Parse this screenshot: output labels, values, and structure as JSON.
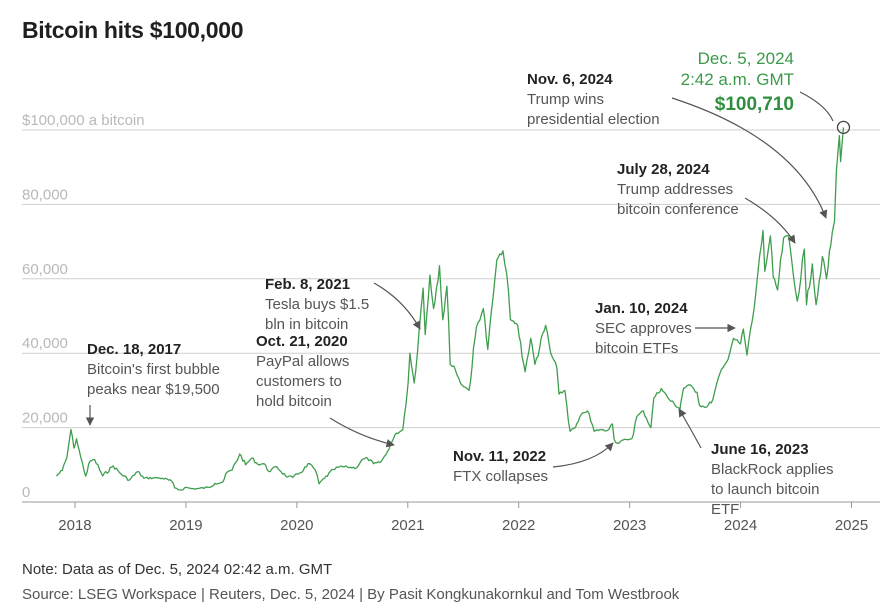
{
  "title": "Bitcoin hits $100,000",
  "note": "Note: Data as of Dec. 5, 2024 02:42 a.m. GMT",
  "source": "Source: LSEG Workspace | Reuters, Dec. 5, 2024 | By Pasit Kongkunakornkul and Tom Westbrook",
  "colors": {
    "line": "#3f9e4e",
    "highlight": "#2f8f3f",
    "grid": "#cfcfcf",
    "arrow": "#555555"
  },
  "chart_data": {
    "type": "line",
    "title": "Bitcoin hits $100,000",
    "xlabel": "",
    "ylabel": "",
    "ylim": [
      0,
      100000
    ],
    "xlim": [
      "2017-09-01",
      "2025-03-01"
    ],
    "grid": "horizontal",
    "y_ticks": [
      {
        "value": 0,
        "label": "0"
      },
      {
        "value": 20000,
        "label": "20,000"
      },
      {
        "value": 40000,
        "label": "40,000"
      },
      {
        "value": 60000,
        "label": "60,000"
      },
      {
        "value": 80000,
        "label": "80,000"
      },
      {
        "value": 100000,
        "label": "$100,000 a bitcoin"
      }
    ],
    "x_ticks": [
      {
        "value": "2018-01-01",
        "label": "2018"
      },
      {
        "value": "2019-01-01",
        "label": "2019"
      },
      {
        "value": "2020-01-01",
        "label": "2020"
      },
      {
        "value": "2021-01-01",
        "label": "2021"
      },
      {
        "value": "2022-01-01",
        "label": "2022"
      },
      {
        "value": "2023-01-01",
        "label": "2023"
      },
      {
        "value": "2024-01-01",
        "label": "2024"
      },
      {
        "value": "2025-01-01",
        "label": "2025"
      }
    ],
    "series": [
      {
        "name": "",
        "points": [
          [
            "2017-11-01",
            7000
          ],
          [
            "2017-11-20",
            8500
          ],
          [
            "2017-12-05",
            12000
          ],
          [
            "2017-12-18",
            19500
          ],
          [
            "2017-12-28",
            14500
          ],
          [
            "2018-01-06",
            17000
          ],
          [
            "2018-01-20",
            12000
          ],
          [
            "2018-02-06",
            7000
          ],
          [
            "2018-02-20",
            11000
          ],
          [
            "2018-03-05",
            11400
          ],
          [
            "2018-04-01",
            7000
          ],
          [
            "2018-05-05",
            9700
          ],
          [
            "2018-06-01",
            7500
          ],
          [
            "2018-06-28",
            5900
          ],
          [
            "2018-07-25",
            8200
          ],
          [
            "2018-08-15",
            6400
          ],
          [
            "2018-09-15",
            6500
          ],
          [
            "2018-10-15",
            6400
          ],
          [
            "2018-11-15",
            5600
          ],
          [
            "2018-11-25",
            3800
          ],
          [
            "2018-12-15",
            3200
          ],
          [
            "2018-12-28",
            3900
          ],
          [
            "2019-01-20",
            3600
          ],
          [
            "2019-02-10",
            3600
          ],
          [
            "2019-03-15",
            3900
          ],
          [
            "2019-04-05",
            5000
          ],
          [
            "2019-05-01",
            5400
          ],
          [
            "2019-05-15",
            8000
          ],
          [
            "2019-06-01",
            8600
          ],
          [
            "2019-06-26",
            12900
          ],
          [
            "2019-07-15",
            10000
          ],
          [
            "2019-08-05",
            11800
          ],
          [
            "2019-08-25",
            10100
          ],
          [
            "2019-09-15",
            10300
          ],
          [
            "2019-09-30",
            8200
          ],
          [
            "2019-10-26",
            9500
          ],
          [
            "2019-11-25",
            7000
          ],
          [
            "2019-12-18",
            6600
          ],
          [
            "2020-01-10",
            7800
          ],
          [
            "2020-02-13",
            10300
          ],
          [
            "2020-03-01",
            8600
          ],
          [
            "2020-03-13",
            4900
          ],
          [
            "2020-04-01",
            6400
          ],
          [
            "2020-04-30",
            8700
          ],
          [
            "2020-05-20",
            9500
          ],
          [
            "2020-06-15",
            9400
          ],
          [
            "2020-07-15",
            9200
          ],
          [
            "2020-08-01",
            11300
          ],
          [
            "2020-08-20",
            11800
          ],
          [
            "2020-09-10",
            10300
          ],
          [
            "2020-10-01",
            10600
          ],
          [
            "2020-10-21",
            12800
          ],
          [
            "2020-11-05",
            15500
          ],
          [
            "2020-11-25",
            18500
          ],
          [
            "2020-12-15",
            19400
          ],
          [
            "2020-12-20",
            23000
          ],
          [
            "2021-01-02",
            32000
          ],
          [
            "2021-01-08",
            40000
          ],
          [
            "2021-01-22",
            32000
          ],
          [
            "2021-02-08",
            46000
          ],
          [
            "2021-02-21",
            57500
          ],
          [
            "2021-02-28",
            45000
          ],
          [
            "2021-03-13",
            61000
          ],
          [
            "2021-03-25",
            52000
          ],
          [
            "2021-04-14",
            63500
          ],
          [
            "2021-04-25",
            49000
          ],
          [
            "2021-05-08",
            58000
          ],
          [
            "2021-05-19",
            37000
          ],
          [
            "2021-06-01",
            36500
          ],
          [
            "2021-06-22",
            32000
          ],
          [
            "2021-07-20",
            30000
          ],
          [
            "2021-08-14",
            47000
          ],
          [
            "2021-09-06",
            52000
          ],
          [
            "2021-09-21",
            41000
          ],
          [
            "2021-10-08",
            55000
          ],
          [
            "2021-10-20",
            65000
          ],
          [
            "2021-11-10",
            67500
          ],
          [
            "2021-11-28",
            57000
          ],
          [
            "2021-12-04",
            49000
          ],
          [
            "2021-12-28",
            47500
          ],
          [
            "2022-01-22",
            35000
          ],
          [
            "2022-02-10",
            44000
          ],
          [
            "2022-02-24",
            37000
          ],
          [
            "2022-03-29",
            47500
          ],
          [
            "2022-04-15",
            40000
          ],
          [
            "2022-05-05",
            36000
          ],
          [
            "2022-05-12",
            29000
          ],
          [
            "2022-06-01",
            30000
          ],
          [
            "2022-06-18",
            19000
          ],
          [
            "2022-07-05",
            20000
          ],
          [
            "2022-07-30",
            24000
          ],
          [
            "2022-08-14",
            24500
          ],
          [
            "2022-09-06",
            19000
          ],
          [
            "2022-09-25",
            19500
          ],
          [
            "2022-10-15",
            19100
          ],
          [
            "2022-11-05",
            21000
          ],
          [
            "2022-11-11",
            16800
          ],
          [
            "2022-11-21",
            15800
          ],
          [
            "2022-12-20",
            16800
          ],
          [
            "2023-01-08",
            17000
          ],
          [
            "2023-01-25",
            23000
          ],
          [
            "2023-02-16",
            24500
          ],
          [
            "2023-03-10",
            20000
          ],
          [
            "2023-03-20",
            28000
          ],
          [
            "2023-04-14",
            30500
          ],
          [
            "2023-05-10",
            27500
          ],
          [
            "2023-06-15",
            25000
          ],
          [
            "2023-06-16",
            26000
          ],
          [
            "2023-06-26",
            30500
          ],
          [
            "2023-07-13",
            31500
          ],
          [
            "2023-08-10",
            29500
          ],
          [
            "2023-08-18",
            26000
          ],
          [
            "2023-09-11",
            25500
          ],
          [
            "2023-10-01",
            27500
          ],
          [
            "2023-10-24",
            34500
          ],
          [
            "2023-11-15",
            37500
          ],
          [
            "2023-12-08",
            44000
          ],
          [
            "2023-12-31",
            42500
          ],
          [
            "2024-01-10",
            46500
          ],
          [
            "2024-01-22",
            39500
          ],
          [
            "2024-02-15",
            52000
          ],
          [
            "2024-02-28",
            62000
          ],
          [
            "2024-03-14",
            73000
          ],
          [
            "2024-03-20",
            62000
          ],
          [
            "2024-04-08",
            71500
          ],
          [
            "2024-04-17",
            60500
          ],
          [
            "2024-05-01",
            57000
          ],
          [
            "2024-05-21",
            71000
          ],
          [
            "2024-06-07",
            71500
          ],
          [
            "2024-06-24",
            60000
          ],
          [
            "2024-07-05",
            54000
          ],
          [
            "2024-07-28",
            68000
          ],
          [
            "2024-08-05",
            53000
          ],
          [
            "2024-08-24",
            64000
          ],
          [
            "2024-09-06",
            53000
          ],
          [
            "2024-09-27",
            66000
          ],
          [
            "2024-10-10",
            60000
          ],
          [
            "2024-10-29",
            72500
          ],
          [
            "2024-11-06",
            75500
          ],
          [
            "2024-11-12",
            89000
          ],
          [
            "2024-11-22",
            98500
          ],
          [
            "2024-11-26",
            91500
          ],
          [
            "2024-12-05",
            100710
          ]
        ]
      }
    ],
    "highlight": {
      "x": "2024-12-05",
      "y": 100710,
      "date_line1": "Dec. 5, 2024",
      "date_line2": "2:42 a.m. GMT",
      "value_label": "$100,710"
    },
    "annotations": [
      {
        "id": "dec2017",
        "date": "Dec. 18, 2017",
        "lines": [
          "Bitcoin's first bubble",
          "peaks near $19,500"
        ]
      },
      {
        "id": "feb2021",
        "date": "Feb. 8, 2021",
        "lines": [
          "Tesla buys $1.5",
          "bln in bitcoin"
        ]
      },
      {
        "id": "oct2020",
        "date": "Oct. 21, 2020",
        "lines": [
          "PayPal allows",
          "customers to",
          "hold bitcoin"
        ]
      },
      {
        "id": "nov2022",
        "date": "Nov. 11, 2022",
        "lines": [
          "FTX collapses"
        ]
      },
      {
        "id": "jan2024",
        "date": "Jan. 10, 2024",
        "lines": [
          "SEC approves",
          "bitcoin ETFs"
        ]
      },
      {
        "id": "jun2023",
        "date": "June 16, 2023",
        "lines": [
          "BlackRock applies",
          "to launch bitcoin",
          "ETF"
        ]
      },
      {
        "id": "jul2024",
        "date": "July 28, 2024",
        "lines": [
          "Trump addresses",
          "bitcoin conference"
        ]
      },
      {
        "id": "nov2024",
        "date": "Nov. 6, 2024",
        "lines": [
          "Trump wins",
          "presidential election"
        ]
      }
    ]
  }
}
